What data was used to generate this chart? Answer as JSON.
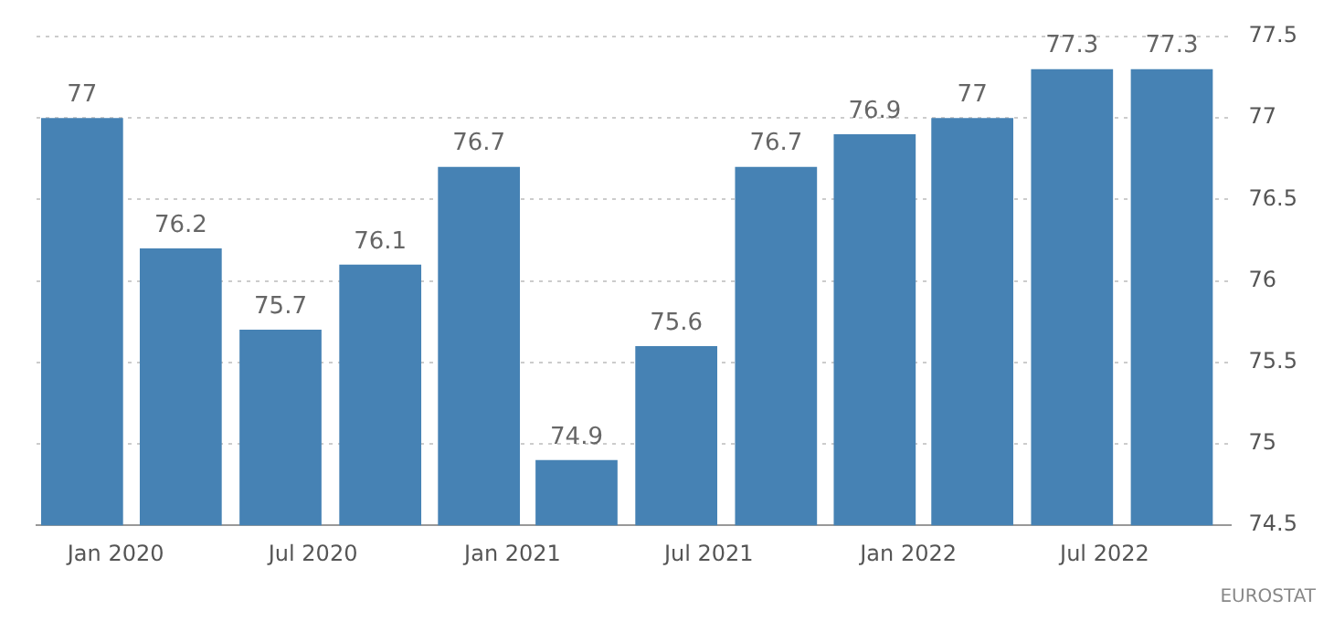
{
  "chart_data": {
    "type": "bar",
    "x": [
      "2019-12",
      "2020-03",
      "2020-06",
      "2020-09",
      "2020-12",
      "2021-03",
      "2021-06",
      "2021-09",
      "2021-12",
      "2022-03",
      "2022-06",
      "2022-09"
    ],
    "values": [
      77,
      76.2,
      75.7,
      76.1,
      76.7,
      74.9,
      75.6,
      76.7,
      76.9,
      77,
      77.3,
      77.3
    ],
    "color": "#4682b4",
    "data_labels": true,
    "xlim": [
      "2019-10-20",
      "2022-10-25"
    ],
    "xticks": [
      {
        "value": "2020-01",
        "label": "Jan 2020"
      },
      {
        "value": "2020-07",
        "label": "Jul 2020"
      },
      {
        "value": "2021-01",
        "label": "Jan 2021"
      },
      {
        "value": "2021-07",
        "label": "Jul 2021"
      },
      {
        "value": "2022-01",
        "label": "Jan 2022"
      },
      {
        "value": "2022-07",
        "label": "Jul 2022"
      }
    ],
    "ylim": [
      74.5,
      77.5
    ],
    "yticks": [
      74.5,
      75,
      75.5,
      76,
      76.5,
      77,
      77.5
    ],
    "grid": "y",
    "annotations": [
      "EUROSTAT"
    ]
  }
}
